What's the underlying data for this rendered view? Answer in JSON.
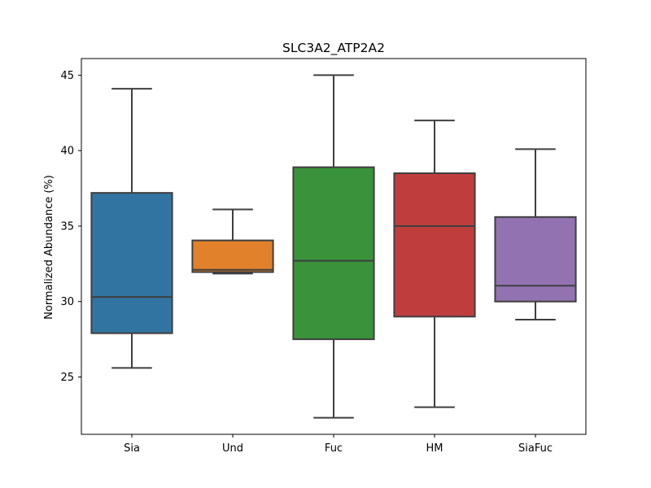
{
  "chart_data": {
    "type": "box",
    "title": "SLC3A2_ATP2A2",
    "xlabel": "",
    "ylabel": "Normalized Abundance (%)",
    "ylim": [
      21.2,
      46.1
    ],
    "yticks": [
      25,
      30,
      35,
      40,
      45
    ],
    "grid": false,
    "categories": [
      "Sia",
      "Und",
      "Fuc",
      "HM",
      "SiaFuc"
    ],
    "colors": [
      "#3274a1",
      "#e1812c",
      "#3a923a",
      "#c03d3e",
      "#9372b2"
    ],
    "boxes": [
      {
        "category": "Sia",
        "whisker_low": 25.6,
        "q1": 27.9,
        "median": 30.3,
        "q3": 37.2,
        "whisker_high": 44.1
      },
      {
        "category": "Und",
        "whisker_low": 31.85,
        "q1": 31.95,
        "median": 32.1,
        "q3": 34.05,
        "whisker_high": 36.1
      },
      {
        "category": "Fuc",
        "whisker_low": 22.3,
        "q1": 27.5,
        "median": 32.7,
        "q3": 38.9,
        "whisker_high": 45.0
      },
      {
        "category": "HM",
        "whisker_low": 23.0,
        "q1": 29.0,
        "median": 35.0,
        "q3": 38.5,
        "whisker_high": 42.0
      },
      {
        "category": "SiaFuc",
        "whisker_low": 28.8,
        "q1": 30.0,
        "median": 31.05,
        "q3": 35.6,
        "whisker_high": 40.1
      }
    ]
  }
}
